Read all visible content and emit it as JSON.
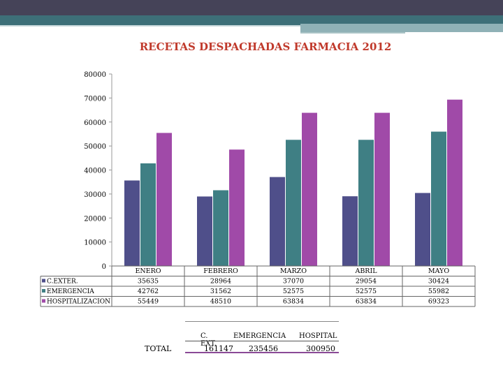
{
  "colors": {
    "c_exter": "#4f4f8a",
    "emergencia": "#3f7f84",
    "hospitalizacion": "#a04aa8",
    "title": "#c0392b"
  },
  "chart_data": {
    "type": "bar",
    "title": "RECETAS DESPACHADAS FARMACIA 2012",
    "categories": [
      "ENERO",
      "FEBRERO",
      "MARZO",
      "ABRIL",
      "MAYO"
    ],
    "series": [
      {
        "name": "C.EXTER.",
        "values": [
          35635,
          28964,
          37070,
          29054,
          30424
        ],
        "labels": [
          "35635",
          "28964",
          "37070",
          "29054",
          "30424"
        ]
      },
      {
        "name": "EMERGENCIA",
        "values": [
          42762,
          31562,
          52575,
          52575,
          55982
        ],
        "labels": [
          "42762",
          "31562",
          "52575",
          "52575",
          "55982"
        ]
      },
      {
        "name": "HOSPITALIZACION",
        "values": [
          55449,
          48510,
          63834,
          63834,
          69323
        ],
        "labels": [
          "55449",
          "48510",
          "63834",
          "63834",
          "69323"
        ]
      }
    ],
    "ylim": [
      0,
      80000
    ],
    "yticks": [
      "0",
      "10000",
      "20000",
      "30000",
      "40000",
      "50000",
      "60000",
      "70000",
      "80000"
    ],
    "legend": "data-table-left"
  },
  "totals": {
    "label": "TOTAL",
    "headers": [
      "C. EXT.",
      "EMERGENCIA",
      "HOSPITAL"
    ],
    "values": [
      "161147",
      "235456",
      "300950"
    ]
  }
}
